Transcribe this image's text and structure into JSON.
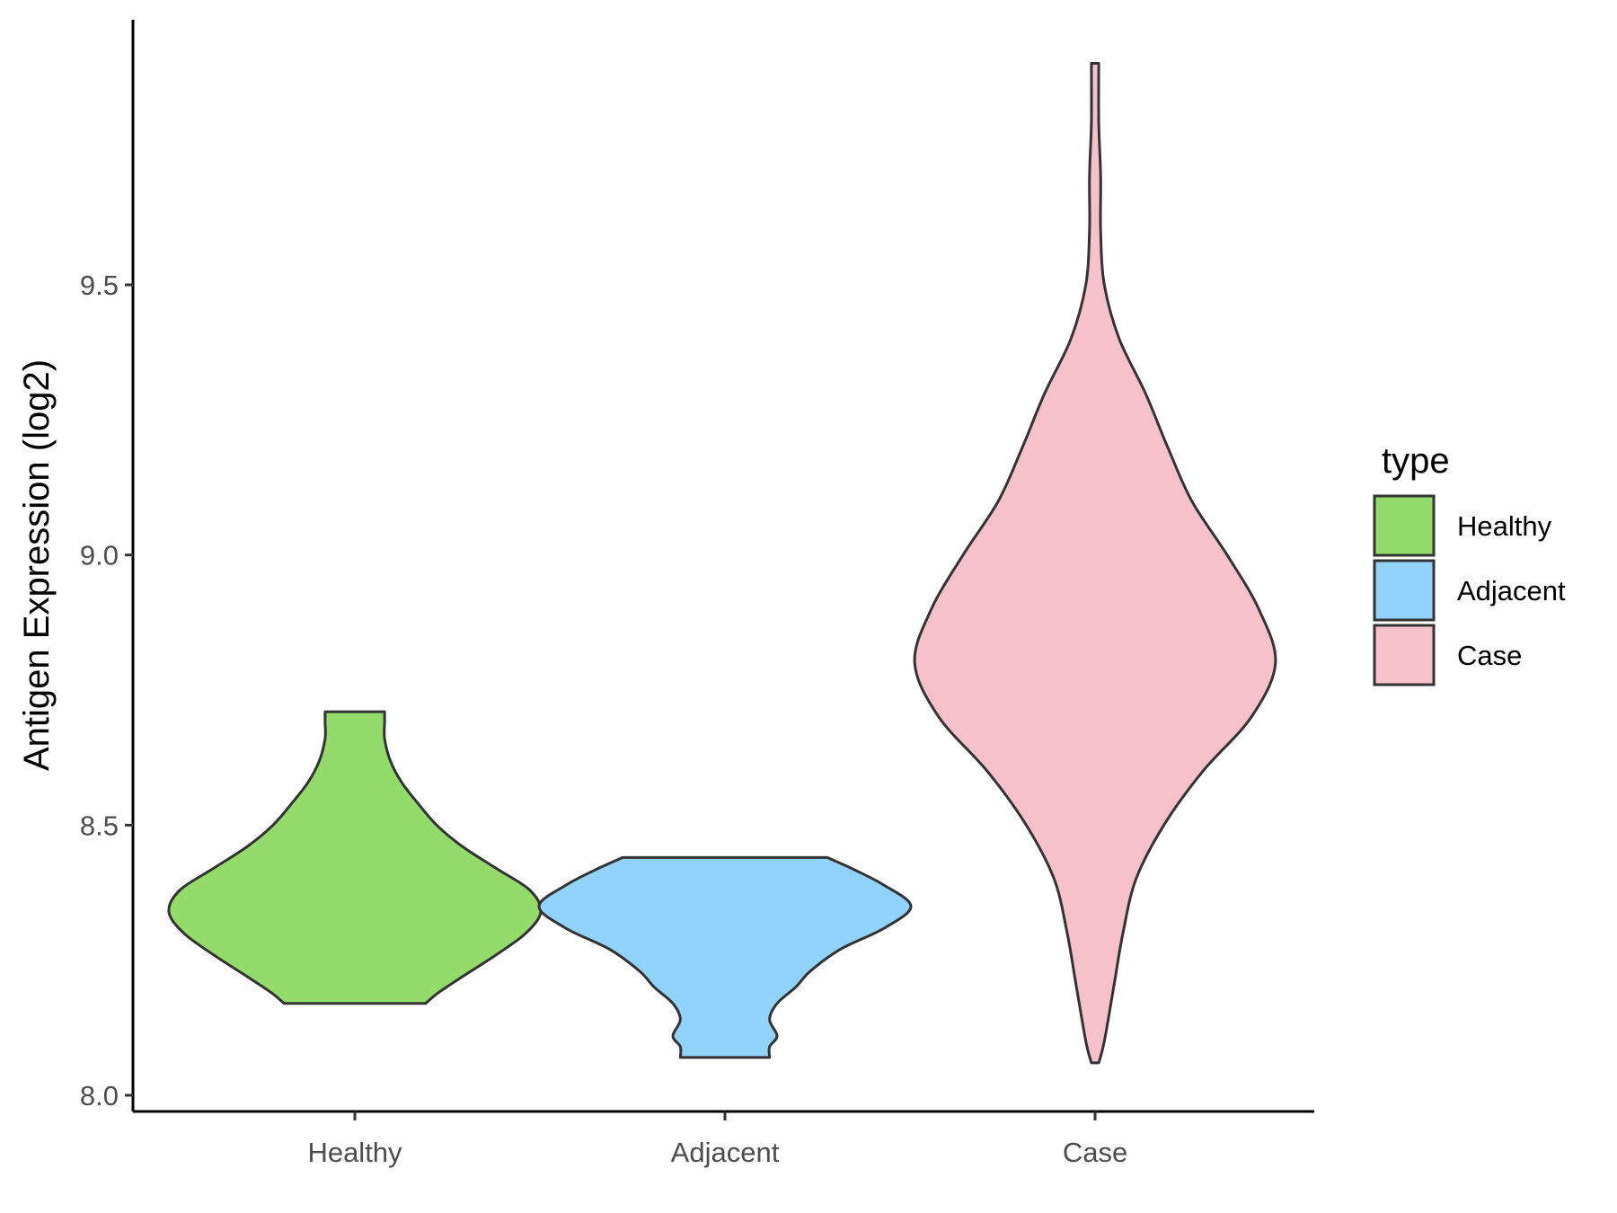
{
  "chart_data": {
    "type": "violin",
    "title": "",
    "xlabel": "",
    "ylabel": "Antigen Expression (log2)",
    "ylim": [
      7.985,
      10.0
    ],
    "yticks": [
      8.0,
      8.5,
      9.0,
      9.5
    ],
    "ytick_labels": [
      "8.0",
      "8.5",
      "9.0",
      "9.5"
    ],
    "categories": [
      "Healthy",
      "Adjacent",
      "Case"
    ],
    "grid": false,
    "legend": {
      "title": "type",
      "placement": "right",
      "entries": [
        "Healthy",
        "Adjacent",
        "Case"
      ]
    },
    "series": [
      {
        "name": "Healthy",
        "color": "#93DB6A",
        "min": 8.17,
        "max": 8.71,
        "profile": [
          [
            8.17,
            0.38
          ],
          [
            8.19,
            0.45
          ],
          [
            8.22,
            0.58
          ],
          [
            8.26,
            0.76
          ],
          [
            8.3,
            0.92
          ],
          [
            8.34,
            1.0
          ],
          [
            8.38,
            0.94
          ],
          [
            8.42,
            0.76
          ],
          [
            8.46,
            0.58
          ],
          [
            8.5,
            0.44
          ],
          [
            8.54,
            0.34
          ],
          [
            8.58,
            0.25
          ],
          [
            8.62,
            0.19
          ],
          [
            8.66,
            0.16
          ],
          [
            8.69,
            0.16
          ],
          [
            8.71,
            0.16
          ]
        ]
      },
      {
        "name": "Adjacent",
        "color": "#92D3FE",
        "min": 8.07,
        "max": 8.44,
        "profile": [
          [
            8.07,
            0.24
          ],
          [
            8.09,
            0.24
          ],
          [
            8.11,
            0.28
          ],
          [
            8.14,
            0.24
          ],
          [
            8.17,
            0.28
          ],
          [
            8.2,
            0.38
          ],
          [
            8.23,
            0.46
          ],
          [
            8.27,
            0.62
          ],
          [
            8.31,
            0.86
          ],
          [
            8.35,
            1.0
          ],
          [
            8.39,
            0.85
          ],
          [
            8.42,
            0.68
          ],
          [
            8.44,
            0.55
          ]
        ]
      },
      {
        "name": "Case",
        "color": "#F7C1CC",
        "min": 8.06,
        "max": 9.91,
        "profile": [
          [
            8.06,
            0.02
          ],
          [
            8.1,
            0.05
          ],
          [
            8.2,
            0.1
          ],
          [
            8.3,
            0.15
          ],
          [
            8.4,
            0.22
          ],
          [
            8.5,
            0.37
          ],
          [
            8.6,
            0.58
          ],
          [
            8.7,
            0.84
          ],
          [
            8.8,
            0.97
          ],
          [
            8.9,
            0.88
          ],
          [
            9.0,
            0.71
          ],
          [
            9.1,
            0.52
          ],
          [
            9.2,
            0.39
          ],
          [
            9.3,
            0.27
          ],
          [
            9.4,
            0.13
          ],
          [
            9.5,
            0.05
          ],
          [
            9.6,
            0.03
          ],
          [
            9.7,
            0.03
          ],
          [
            9.8,
            0.02
          ],
          [
            9.91,
            0.02
          ]
        ]
      }
    ]
  }
}
